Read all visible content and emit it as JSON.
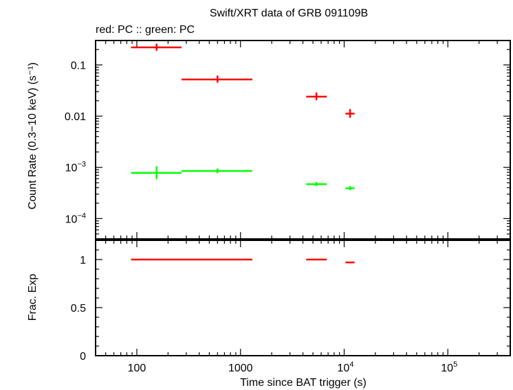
{
  "chart_data": [
    {
      "type": "scatter",
      "title": "Swift/XRT data of GRB 091109B",
      "subtitle": "red: PC  :: green: PC",
      "xlabel": "Time since BAT trigger (s)",
      "ylabel": "Count Rate (0.3−10 keV) (s⁻¹)",
      "xscale": "log",
      "yscale": "log",
      "xlim": [
        40,
        400000
      ],
      "ylim": [
        4e-05,
        0.3
      ],
      "grid": false,
      "x_ticks": [
        {
          "value": 100,
          "label": "100"
        },
        {
          "value": 1000,
          "label": "1000"
        },
        {
          "value": 10000,
          "base": "10",
          "exp": "4"
        },
        {
          "value": 100000,
          "base": "10",
          "exp": "5"
        }
      ],
      "y_ticks": [
        {
          "value": 0.1,
          "label": "0.1"
        },
        {
          "value": 0.01,
          "label": "0.01"
        },
        {
          "value": 0.001,
          "base": "10",
          "exp": "−3"
        },
        {
          "value": 0.0001,
          "base": "10",
          "exp": "−4"
        }
      ],
      "series": [
        {
          "color": "#ff0000",
          "points": [
            {
              "x": 155,
              "xlo": 88,
              "xhi": 270,
              "y": 0.22,
              "ylo": 0.19,
              "yhi": 0.26
            },
            {
              "x": 600,
              "xlo": 270,
              "xhi": 1300,
              "y": 0.052,
              "ylo": 0.045,
              "yhi": 0.062
            },
            {
              "x": 5400,
              "xlo": 4300,
              "xhi": 6800,
              "y": 0.024,
              "ylo": 0.0205,
              "yhi": 0.029
            },
            {
              "x": 11400,
              "xlo": 10300,
              "xhi": 12600,
              "y": 0.0112,
              "ylo": 0.0093,
              "yhi": 0.0138
            }
          ]
        },
        {
          "color": "#00ff00",
          "points": [
            {
              "x": 155,
              "xlo": 88,
              "xhi": 270,
              "y": 0.00078,
              "ylo": 0.00059,
              "yhi": 0.00105
            },
            {
              "x": 600,
              "xlo": 270,
              "xhi": 1300,
              "y": 0.00085,
              "ylo": 0.00077,
              "yhi": 0.00095
            },
            {
              "x": 5400,
              "xlo": 4300,
              "xhi": 6800,
              "y": 0.00047,
              "ylo": 0.00043,
              "yhi": 0.00052
            },
            {
              "x": 11400,
              "xlo": 10300,
              "xhi": 12600,
              "y": 0.00039,
              "ylo": 0.00036,
              "yhi": 0.00043
            }
          ]
        }
      ]
    },
    {
      "type": "scatter",
      "xlabel": "Time since BAT trigger (s)",
      "ylabel": "Frac. Exp",
      "xscale": "log",
      "yscale": "linear",
      "xlim": [
        40,
        400000
      ],
      "ylim": [
        0,
        1.2
      ],
      "grid": false,
      "y_ticks": [
        {
          "value": 1,
          "label": "1"
        },
        {
          "value": 0.5,
          "label": "0.5"
        },
        {
          "value": 0,
          "label": "0"
        }
      ],
      "series": [
        {
          "color": "#ff0000",
          "points": [
            {
              "xlo": 88,
              "xhi": 270,
              "y": 1.0
            },
            {
              "xlo": 270,
              "xhi": 1300,
              "y": 1.0
            },
            {
              "xlo": 4300,
              "xhi": 6800,
              "y": 1.0
            },
            {
              "xlo": 10300,
              "xhi": 12600,
              "y": 0.97
            }
          ]
        }
      ]
    }
  ]
}
